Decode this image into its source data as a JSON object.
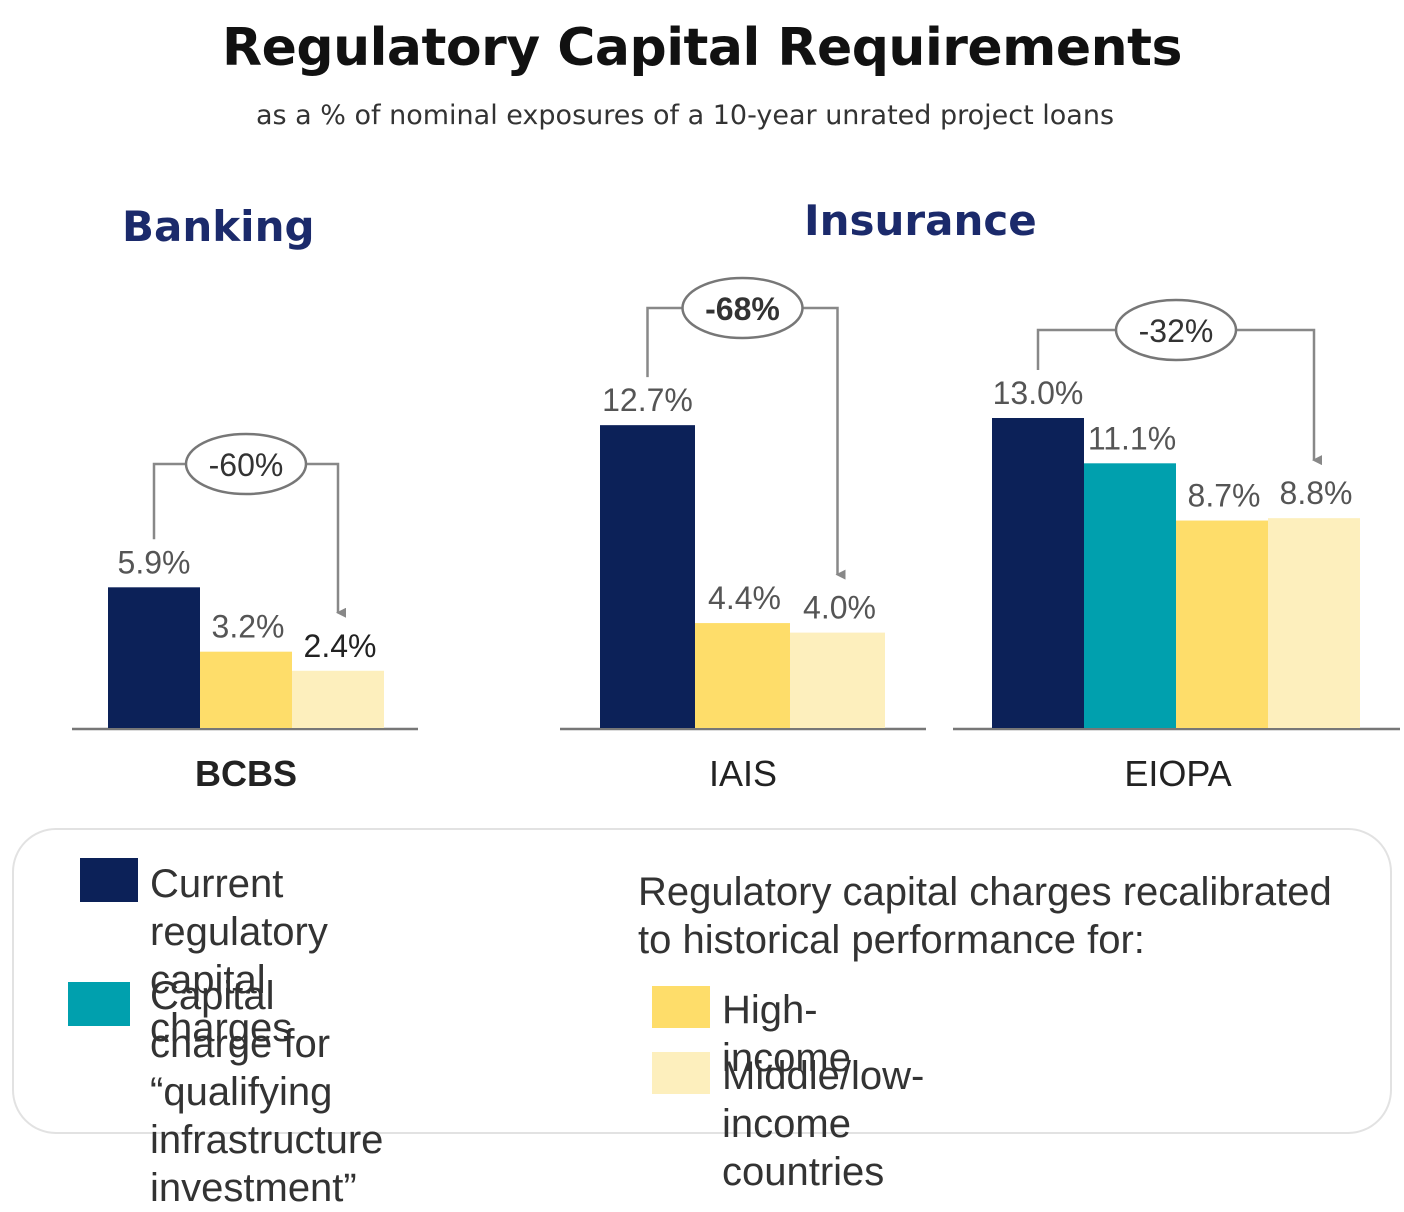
{
  "title": "Regulatory Capital Requirements",
  "subtitle": "as a % of nominal exposures of a 10-year unrated project loans",
  "sections": {
    "banking": "Banking",
    "insurance": "Insurance"
  },
  "colors": {
    "current": "#0c2158",
    "qualifying": "#00a0ae",
    "high_income": "#fedd6a",
    "middle_low_income": "#fdefbd",
    "axis": "#777777",
    "callout": "#888888"
  },
  "chart_data": {
    "type": "bar",
    "groups": [
      {
        "name": "BCBS",
        "bars": [
          {
            "series": "current",
            "value": 5.9,
            "label": "5.9%"
          },
          {
            "series": "high_income",
            "value": 3.2,
            "label": "3.2%"
          },
          {
            "series": "middle_low_income",
            "value": 2.4,
            "label": "2.4%"
          }
        ],
        "change": "-60%"
      },
      {
        "name": "IAIS",
        "bars": [
          {
            "series": "current",
            "value": 12.7,
            "label": "12.7%"
          },
          {
            "series": "high_income",
            "value": 4.4,
            "label": "4.4%"
          },
          {
            "series": "middle_low_income",
            "value": 4.0,
            "label": "4.0%"
          }
        ],
        "change": "-68%"
      },
      {
        "name": "EIOPA",
        "bars": [
          {
            "series": "current",
            "value": 13.0,
            "label": "13.0%"
          },
          {
            "series": "qualifying",
            "value": 11.1,
            "label": "11.1%"
          },
          {
            "series": "high_income",
            "value": 8.7,
            "label": "8.7%"
          },
          {
            "series": "middle_low_income",
            "value": 8.8,
            "label": "8.8%"
          }
        ],
        "change": "-32%"
      }
    ]
  },
  "legend": {
    "current": "Current regulatory\ncapital charges",
    "qualifying": "Capital charge for\n“qualifying infrastructure\ninvestment”",
    "recalibrated_heading": "Regulatory capital charges recalibrated\n to historical performance for:",
    "high_income": "High-income",
    "middle_low_income": "Middle/low-income countries"
  }
}
